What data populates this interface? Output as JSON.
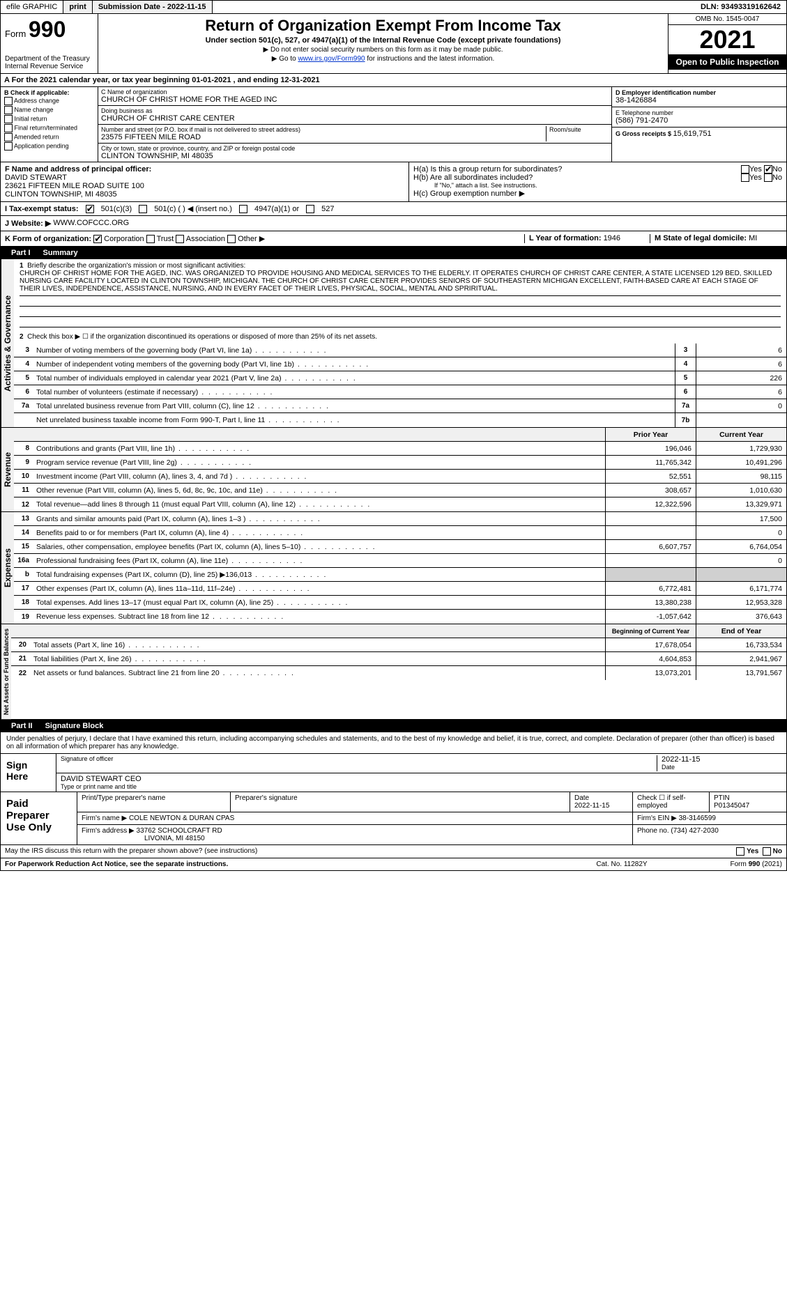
{
  "topbar": {
    "efile": "efile GRAPHIC",
    "print": "print",
    "subdate_label": "Submission Date - ",
    "subdate": "2022-11-15",
    "dln_label": "DLN: ",
    "dln": "93493319162642"
  },
  "header": {
    "form": "Form",
    "form_num": "990",
    "dept": "Department of the Treasury\nInternal Revenue Service",
    "title": "Return of Organization Exempt From Income Tax",
    "sub": "Under section 501(c), 527, or 4947(a)(1) of the Internal Revenue Code (except private foundations)",
    "note1": "▶ Do not enter social security numbers on this form as it may be made public.",
    "note2": "▶ Go to ",
    "link": "www.irs.gov/Form990",
    "note2b": " for instructions and the latest information.",
    "omb": "OMB No. 1545-0047",
    "year": "2021",
    "open": "Open to Public Inspection"
  },
  "period": {
    "text": "For the 2021 calendar year, or tax year beginning ",
    "begin": "01-01-2021",
    "mid": " , and ending ",
    "end": "12-31-2021"
  },
  "b": {
    "title": "B Check if applicable:",
    "addr": "Address change",
    "name": "Name change",
    "init": "Initial return",
    "final": "Final return/terminated",
    "amend": "Amended return",
    "app": "Application pending"
  },
  "c": {
    "name_label": "C Name of organization",
    "name": "CHURCH OF CHRIST HOME FOR THE AGED INC",
    "dba_label": "Doing business as",
    "dba": "CHURCH OF CHRIST CARE CENTER",
    "addr_label": "Number and street (or P.O. box if mail is not delivered to street address)",
    "addr": "23575 FIFTEEN MILE ROAD",
    "room_label": "Room/suite",
    "city_label": "City or town, state or province, country, and ZIP or foreign postal code",
    "city": "CLINTON TOWNSHIP, MI  48035"
  },
  "d": {
    "ein_label": "D Employer identification number",
    "ein": "38-1426884",
    "tel_label": "E Telephone number",
    "tel": "(586) 791-2470",
    "gross_label": "G Gross receipts $ ",
    "gross": "15,619,751"
  },
  "f": {
    "label": "F Name and address of principal officer:",
    "name": "DAVID STEWART",
    "addr1": "23621 FIFTEEN MILE ROAD SUITE 100",
    "addr2": "CLINTON TOWNSHIP, MI  48035"
  },
  "h": {
    "a": "H(a) Is this a group return for subordinates?",
    "b": "H(b) Are all subordinates included?",
    "b_note": "If \"No,\" attach a list. See instructions.",
    "c": "H(c) Group exemption number ▶",
    "yes": "Yes",
    "no": "No"
  },
  "i": {
    "label": "I   Tax-exempt status:",
    "c3": "501(c)(3)",
    "c": "501(c) (   ) ◀ (insert no.)",
    "a1": "4947(a)(1) or",
    "s527": "527"
  },
  "j": {
    "label": "J   Website: ▶",
    "val": "WWW.COFCCC.ORG"
  },
  "k": {
    "label": "K Form of organization:",
    "corp": "Corporation",
    "trust": "Trust",
    "assoc": "Association",
    "other": "Other ▶"
  },
  "l": {
    "label": "L Year of formation: ",
    "val": "1946"
  },
  "m": {
    "label": "M State of legal domicile: ",
    "val": "MI"
  },
  "part1": {
    "num": "Part I",
    "title": "Summary"
  },
  "mission": {
    "num": "1",
    "label": "Briefly describe the organization's mission or most significant activities:",
    "text": "CHURCH OF CHRIST HOME FOR THE AGED, INC. WAS ORGANIZED TO PROVIDE HOUSING AND MEDICAL SERVICES TO THE ELDERLY. IT OPERATES CHURCH OF CHRIST CARE CENTER, A STATE LICENSED 129 BED, SKILLED NURSING CARE FACILITY LOCATED IN CLINTON TOWNSHIP, MICHIGAN. THE CHURCH OF CHRIST CARE CENTER PROVIDES SENIORS OF SOUTHEASTERN MICHIGAN EXCELLENT, FAITH-BASED CARE AT EACH STAGE OF THEIR LIVES, INDEPENDENCE, ASSISTANCE, NURSING, AND IN EVERY FACET OF THEIR LIVES, PHYSICAL, SOCIAL, MENTAL AND SPRIRITUAL."
  },
  "line2": "Check this box ▶ ☐ if the organization discontinued its operations or disposed of more than 25% of its net assets.",
  "govlines": [
    {
      "n": "3",
      "t": "Number of voting members of the governing body (Part VI, line 1a)",
      "b": "3",
      "v": "6"
    },
    {
      "n": "4",
      "t": "Number of independent voting members of the governing body (Part VI, line 1b)",
      "b": "4",
      "v": "6"
    },
    {
      "n": "5",
      "t": "Total number of individuals employed in calendar year 2021 (Part V, line 2a)",
      "b": "5",
      "v": "226"
    },
    {
      "n": "6",
      "t": "Total number of volunteers (estimate if necessary)",
      "b": "6",
      "v": "6"
    },
    {
      "n": "7a",
      "t": "Total unrelated business revenue from Part VIII, column (C), line 12",
      "b": "7a",
      "v": "0"
    },
    {
      "n": "",
      "t": "Net unrelated business taxable income from Form 990-T, Part I, line 11",
      "b": "7b",
      "v": ""
    }
  ],
  "colheads": {
    "prior": "Prior Year",
    "current": "Current Year"
  },
  "revenue": [
    {
      "n": "8",
      "t": "Contributions and grants (Part VIII, line 1h)",
      "p": "196,046",
      "c": "1,729,930"
    },
    {
      "n": "9",
      "t": "Program service revenue (Part VIII, line 2g)",
      "p": "11,765,342",
      "c": "10,491,296"
    },
    {
      "n": "10",
      "t": "Investment income (Part VIII, column (A), lines 3, 4, and 7d )",
      "p": "52,551",
      "c": "98,115"
    },
    {
      "n": "11",
      "t": "Other revenue (Part VIII, column (A), lines 5, 6d, 8c, 9c, 10c, and 11e)",
      "p": "308,657",
      "c": "1,010,630"
    },
    {
      "n": "12",
      "t": "Total revenue—add lines 8 through 11 (must equal Part VIII, column (A), line 12)",
      "p": "12,322,596",
      "c": "13,329,971"
    }
  ],
  "expenses": [
    {
      "n": "13",
      "t": "Grants and similar amounts paid (Part IX, column (A), lines 1–3 )",
      "p": "",
      "c": "17,500"
    },
    {
      "n": "14",
      "t": "Benefits paid to or for members (Part IX, column (A), line 4)",
      "p": "",
      "c": "0"
    },
    {
      "n": "15",
      "t": "Salaries, other compensation, employee benefits (Part IX, column (A), lines 5–10)",
      "p": "6,607,757",
      "c": "6,764,054"
    },
    {
      "n": "16a",
      "t": "Professional fundraising fees (Part IX, column (A), line 11e)",
      "p": "",
      "c": "0"
    },
    {
      "n": "b",
      "t": "Total fundraising expenses (Part IX, column (D), line 25) ▶136,013",
      "p": "GRAY",
      "c": "GRAY"
    },
    {
      "n": "17",
      "t": "Other expenses (Part IX, column (A), lines 11a–11d, 11f–24e)",
      "p": "6,772,481",
      "c": "6,171,774"
    },
    {
      "n": "18",
      "t": "Total expenses. Add lines 13–17 (must equal Part IX, column (A), line 25)",
      "p": "13,380,238",
      "c": "12,953,328"
    },
    {
      "n": "19",
      "t": "Revenue less expenses. Subtract line 18 from line 12",
      "p": "-1,057,642",
      "c": "376,643"
    }
  ],
  "netheads": {
    "begin": "Beginning of Current Year",
    "end": "End of Year"
  },
  "net": [
    {
      "n": "20",
      "t": "Total assets (Part X, line 16)",
      "p": "17,678,054",
      "c": "16,733,534"
    },
    {
      "n": "21",
      "t": "Total liabilities (Part X, line 26)",
      "p": "4,604,853",
      "c": "2,941,967"
    },
    {
      "n": "22",
      "t": "Net assets or fund balances. Subtract line 21 from line 20",
      "p": "13,073,201",
      "c": "13,791,567"
    }
  ],
  "part2": {
    "num": "Part II",
    "title": "Signature Block"
  },
  "sig": {
    "perjury": "Under penalties of perjury, I declare that I have examined this return, including accompanying schedules and statements, and to the best of my knowledge and belief, it is true, correct, and complete. Declaration of preparer (other than officer) is based on all information of which preparer has any knowledge.",
    "sign_here": "Sign Here",
    "sig_officer": "Signature of officer",
    "date_label": "Date",
    "date": "2022-11-15",
    "name": "DAVID STEWART CEO",
    "name_label": "Type or print name and title"
  },
  "prep": {
    "label": "Paid Preparer Use Only",
    "print_name": "Print/Type preparer's name",
    "prep_sig": "Preparer's signature",
    "date_label": "Date",
    "date": "2022-11-15",
    "check_label": "Check ☐ if self-employed",
    "ptin_label": "PTIN",
    "ptin": "P01345047",
    "firm_name_label": "Firm's name  ▶",
    "firm_name": "COLE NEWTON & DURAN CPAS",
    "firm_ein_label": "Firm's EIN ▶",
    "firm_ein": "38-3146599",
    "firm_addr_label": "Firm's address ▶",
    "firm_addr": "33762 SCHOOLCRAFT RD",
    "firm_city": "LIVONIA, MI  48150",
    "phone_label": "Phone no. ",
    "phone": "(734) 427-2030"
  },
  "footer": {
    "discuss": "May the IRS discuss this return with the preparer shown above? (see instructions)",
    "yes": "Yes",
    "no": "No",
    "pra": "For Paperwork Reduction Act Notice, see the separate instructions.",
    "cat": "Cat. No. 11282Y",
    "form": "Form 990 (2021)"
  },
  "vert": {
    "gov": "Activities & Governance",
    "rev": "Revenue",
    "exp": "Expenses",
    "net": "Net Assets or Fund Balances"
  }
}
